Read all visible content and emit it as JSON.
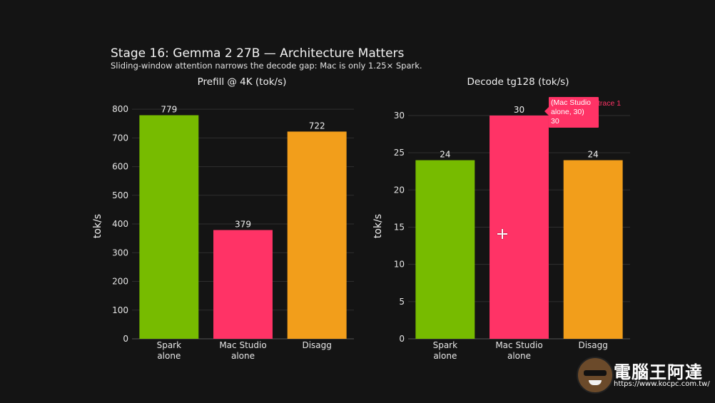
{
  "title": "Stage 16: Gemma 2 27B — Architecture Matters",
  "subtitle": "Sliding-window attention narrows the decode gap: Mac is only 1.25× Spark.",
  "colors": {
    "spark": "#77bb00",
    "mac": "#ff3366",
    "disagg": "#f29e1b",
    "grid": "#2f2f2f",
    "axis": "#555555"
  },
  "chart_data": [
    {
      "type": "bar",
      "title": "Prefill @ 4K (tok/s)",
      "categories": [
        "Spark alone",
        "Mac Studio alone",
        "Disagg"
      ],
      "category_lines": [
        [
          "Spark",
          "alone"
        ],
        [
          "Mac Studio",
          "alone"
        ],
        [
          "Disagg"
        ]
      ],
      "values": [
        779,
        379,
        722
      ],
      "value_labels": [
        "779",
        "379",
        "722"
      ],
      "ylabel": "tok/s",
      "ylim": [
        0,
        835
      ],
      "yticks": [
        0,
        100,
        200,
        300,
        400,
        500,
        600,
        700,
        800
      ],
      "grid": true
    },
    {
      "type": "bar",
      "title": "Decode tg128 (tok/s)",
      "categories": [
        "Spark alone",
        "Mac Studio alone",
        "Disagg"
      ],
      "category_lines": [
        [
          "Spark",
          "alone"
        ],
        [
          "Mac Studio",
          "alone"
        ],
        [
          "Disagg"
        ]
      ],
      "values": [
        24,
        30,
        24
      ],
      "value_labels": [
        "24",
        "30",
        "24"
      ],
      "ylabel": "tok/s",
      "ylim": [
        0,
        32.2
      ],
      "yticks": [
        0,
        5,
        10,
        15,
        20,
        25,
        30
      ],
      "grid": true
    }
  ],
  "tooltip": {
    "lines": [
      "(Mac Studio",
      "alone, 30)",
      "30"
    ],
    "trace": "trace 1"
  },
  "watermark": {
    "text": "電腦王阿達",
    "url": "https://www.kocpc.com.tw/"
  }
}
